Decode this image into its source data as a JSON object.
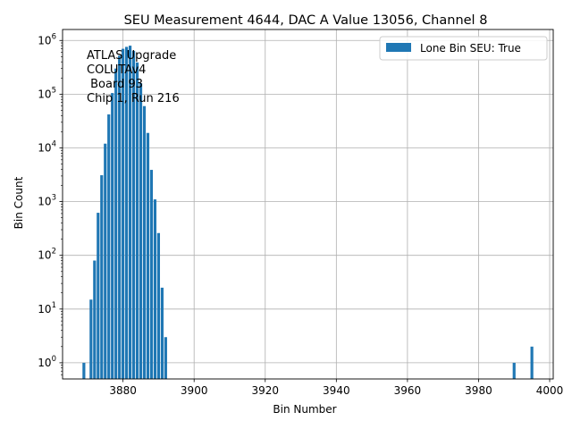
{
  "chart_data": {
    "type": "bar",
    "title": "SEU Measurement 4644, DAC A Value 13056, Channel 8",
    "xlabel": "Bin Number",
    "ylabel": "Bin Count",
    "yscale": "log",
    "xlim": [
      3863,
      4001
    ],
    "ylim": [
      0.5,
      1600000
    ],
    "grid": true,
    "xticks": [
      3880,
      3900,
      3920,
      3940,
      3960,
      3980,
      4000
    ],
    "yticks": [
      {
        "base": "10",
        "exp": "0",
        "value": 1
      },
      {
        "base": "10",
        "exp": "1",
        "value": 10
      },
      {
        "base": "10",
        "exp": "2",
        "value": 100
      },
      {
        "base": "10",
        "exp": "3",
        "value": 1000
      },
      {
        "base": "10",
        "exp": "4",
        "value": 10000
      },
      {
        "base": "10",
        "exp": "5",
        "value": 100000
      },
      {
        "base": "10",
        "exp": "6",
        "value": 1000000
      }
    ],
    "series": [
      {
        "name": "Lone Bin SEU: True",
        "color": "#1f77b4",
        "x": [
          3869,
          3871,
          3872,
          3873,
          3874,
          3875,
          3876,
          3877,
          3878,
          3879,
          3880,
          3881,
          3882,
          3883,
          3884,
          3885,
          3886,
          3887,
          3888,
          3889,
          3890,
          3891,
          3892,
          3990,
          3995
        ],
        "values": [
          1,
          15,
          80,
          620,
          3100,
          12000,
          42000,
          105000,
          300000,
          520000,
          700000,
          760000,
          800000,
          640000,
          390000,
          160000,
          60000,
          19000,
          3900,
          1100,
          260,
          25,
          3,
          1,
          2
        ]
      }
    ],
    "legend": {
      "entries": [
        "Lone Bin SEU: True"
      ],
      "location": "top-right"
    },
    "annotation": [
      "ATLAS Upgrade",
      "COLUTAv4",
      " Board 93",
      "Chip 1, Run 216"
    ]
  }
}
